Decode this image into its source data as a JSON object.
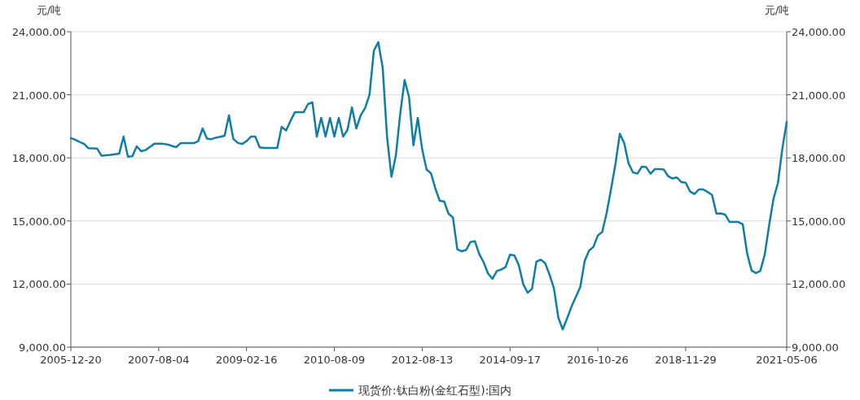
{
  "chart_data": {
    "type": "line",
    "ylabel": "元/吨",
    "y2label": "元/吨",
    "categories": [
      "2005-12-20",
      null,
      null,
      null,
      null,
      null,
      null,
      null,
      null,
      null,
      null,
      null,
      null,
      null,
      null,
      null,
      null,
      null,
      null,
      null,
      "2007-08-04",
      null,
      null,
      null,
      null,
      null,
      null,
      null,
      null,
      null,
      null,
      null,
      null,
      null,
      null,
      null,
      null,
      null,
      null,
      null,
      "2009-02-16",
      null,
      null,
      null,
      null,
      null,
      null,
      null,
      null,
      null,
      null,
      null,
      null,
      null,
      null,
      null,
      null,
      null,
      null,
      null,
      "2010-08-09",
      null,
      null,
      null,
      null,
      null,
      null,
      null,
      null,
      null,
      null,
      null,
      null,
      null,
      null,
      null,
      null,
      null,
      null,
      null,
      "2012-08-13",
      null,
      null,
      null,
      null,
      null,
      null,
      null,
      null,
      null,
      null,
      null,
      null,
      null,
      null,
      null,
      null,
      null,
      null,
      null,
      "2014-09-17",
      null,
      null,
      null,
      null,
      null,
      null,
      null,
      null,
      null,
      null,
      null,
      null,
      null,
      null,
      null,
      null,
      null,
      null,
      null,
      "2016-10-26",
      null,
      null,
      null,
      null,
      null,
      null,
      null,
      null,
      null,
      null,
      null,
      null,
      null,
      null,
      null,
      null,
      null,
      null,
      null,
      "2018-11-29",
      null,
      null,
      null,
      null,
      null,
      null,
      null,
      null,
      null,
      null,
      null,
      null,
      null,
      null,
      null,
      null,
      null,
      null,
      null,
      null,
      null,
      null,
      "2021-05-06"
    ],
    "series": [
      {
        "name": "现货价:钛白粉(金红石型):国内",
        "color": "#0f7ea6",
        "values": [
          18940,
          18860,
          18760,
          18670,
          18460,
          18450,
          18440,
          18100,
          18120,
          18140,
          18170,
          18200,
          19010,
          18060,
          18080,
          18550,
          18320,
          18370,
          18520,
          18670,
          18670,
          18670,
          18640,
          18570,
          18510,
          18700,
          18700,
          18700,
          18700,
          18800,
          19400,
          18920,
          18890,
          18960,
          19000,
          19050,
          20020,
          18900,
          18720,
          18660,
          18800,
          19010,
          19010,
          18500,
          18470,
          18470,
          18470,
          18470,
          19480,
          19300,
          19750,
          20170,
          20170,
          20170,
          20560,
          20640,
          19010,
          19900,
          19010,
          19900,
          19010,
          19900,
          19010,
          19340,
          20400,
          19400,
          20020,
          20370,
          21000,
          23100,
          23500,
          22300,
          19000,
          17100,
          18100,
          20100,
          21700,
          20900,
          18600,
          19900,
          18400,
          17450,
          17270,
          16540,
          15960,
          15930,
          15340,
          15170,
          13650,
          13560,
          13620,
          14000,
          14040,
          13420,
          13030,
          12500,
          12250,
          12620,
          12690,
          12810,
          13400,
          13360,
          12900,
          12000,
          11590,
          11770,
          13060,
          13160,
          12990,
          12450,
          11800,
          10400,
          9850,
          10370,
          10930,
          11400,
          11860,
          13100,
          13590,
          13770,
          14310,
          14480,
          15380,
          16510,
          17700,
          19150,
          18700,
          17730,
          17310,
          17250,
          17580,
          17560,
          17250,
          17470,
          17470,
          17450,
          17130,
          17020,
          17070,
          16850,
          16820,
          16400,
          16280,
          16500,
          16500,
          16380,
          16240,
          15350,
          15360,
          15300,
          14950,
          14950,
          14950,
          14840,
          13450,
          12650,
          12520,
          12630,
          13400,
          14800,
          16060,
          16800,
          18430,
          19710
        ]
      }
    ],
    "ylim": [
      9000,
      24000
    ],
    "yticks": [
      {
        "value": 9000,
        "label": "9,000.00"
      },
      {
        "value": 12000,
        "label": "12,000.00"
      },
      {
        "value": 15000,
        "label": "15,000.00"
      },
      {
        "value": 18000,
        "label": "18,000.00"
      },
      {
        "value": 21000,
        "label": "21,000.00"
      },
      {
        "value": 24000,
        "label": "24,000.00"
      }
    ],
    "y2lim": [
      9000,
      24000
    ],
    "y2ticks": [
      {
        "value": 9000,
        "label": "9,000.00"
      },
      {
        "value": 12000,
        "label": "12,000.00"
      },
      {
        "value": 15000,
        "label": "15,000.00"
      },
      {
        "value": 18000,
        "label": "18,000.00"
      },
      {
        "value": 21000,
        "label": "21,000.00"
      },
      {
        "value": 24000,
        "label": "24,000.00"
      }
    ],
    "grid": "y",
    "legend": "bottom",
    "marker": "none",
    "line_style": "solid"
  }
}
